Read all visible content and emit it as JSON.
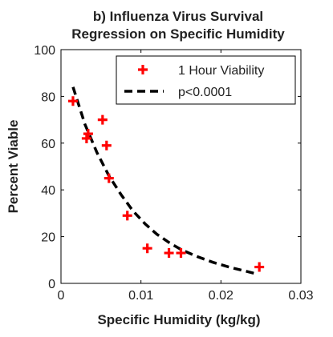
{
  "chart_data": {
    "type": "scatter",
    "title_lines": [
      "b) Influenza Virus Survival",
      "Regression on Specific Humidity"
    ],
    "xlabel": "Specific Humidity (kg/kg)",
    "ylabel": "Percent Viable",
    "xlim": [
      0,
      0.03
    ],
    "ylim": [
      0,
      100
    ],
    "x_ticks": [
      0,
      0.01,
      0.02,
      0.03
    ],
    "x_tick_labels": [
      "0",
      "0.01",
      "0.02",
      "0.03"
    ],
    "y_ticks": [
      0,
      20,
      40,
      60,
      80,
      100
    ],
    "y_tick_labels": [
      "0",
      "20",
      "40",
      "60",
      "80",
      "100"
    ],
    "grid": false,
    "legend_position": "top-right",
    "series": [
      {
        "name": "1 Hour Viability",
        "kind": "scatter",
        "marker": "plus",
        "color": "#ff0000",
        "points": [
          {
            "x": 0.0015,
            "y": 78
          },
          {
            "x": 0.0032,
            "y": 62
          },
          {
            "x": 0.0034,
            "y": 64
          },
          {
            "x": 0.0052,
            "y": 70
          },
          {
            "x": 0.0057,
            "y": 59
          },
          {
            "x": 0.006,
            "y": 45
          },
          {
            "x": 0.0083,
            "y": 29
          },
          {
            "x": 0.0108,
            "y": 15
          },
          {
            "x": 0.0135,
            "y": 13
          },
          {
            "x": 0.015,
            "y": 13
          },
          {
            "x": 0.0248,
            "y": 7
          }
        ]
      },
      {
        "name": "p<0.0001",
        "kind": "line",
        "style": "dashed",
        "color": "#000000",
        "points": [
          {
            "x": 0.0015,
            "y": 84
          },
          {
            "x": 0.003,
            "y": 68
          },
          {
            "x": 0.0045,
            "y": 56
          },
          {
            "x": 0.006,
            "y": 46
          },
          {
            "x": 0.0075,
            "y": 38
          },
          {
            "x": 0.009,
            "y": 31
          },
          {
            "x": 0.0105,
            "y": 25.5
          },
          {
            "x": 0.012,
            "y": 21
          },
          {
            "x": 0.0135,
            "y": 17.5
          },
          {
            "x": 0.015,
            "y": 14.5
          },
          {
            "x": 0.017,
            "y": 11.5
          },
          {
            "x": 0.019,
            "y": 9
          },
          {
            "x": 0.021,
            "y": 7
          },
          {
            "x": 0.023,
            "y": 5.3
          },
          {
            "x": 0.0245,
            "y": 4
          }
        ]
      }
    ]
  }
}
